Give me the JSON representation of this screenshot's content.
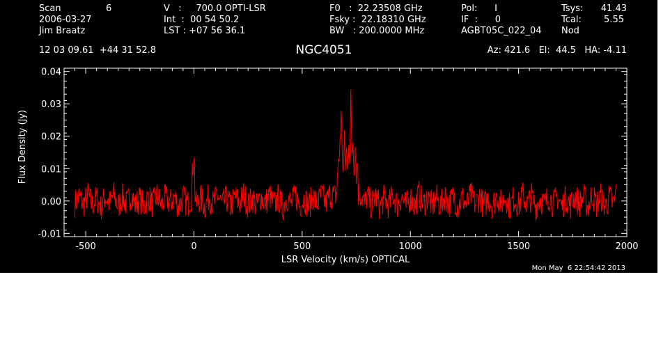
{
  "header": {
    "scan_label": "Scan",
    "scan_value": "6",
    "date": "2006-03-27",
    "observer": "Jim Braatz",
    "v_line": "V   :     700.0 OPTI-LSR",
    "int_line": "Int  :  00 54 50.2",
    "lst_line": "LST : +07 56 36.1",
    "f0_line": "F0   :  22.23508 GHz",
    "fsky_line": "Fsky :  22.18310 GHz",
    "bw_line": "BW   : 200.0000 MHz",
    "pol_line": "Pol:      I",
    "if_line": "IF  :      0",
    "project": "AGBT05C_022_04",
    "tsys_label": "Tsys:",
    "tsys_value": "41.43",
    "tcal_label": "Tcal:",
    "tcal_value": "5.55",
    "mode": "Nod",
    "coords": "12 03 09.61  +44 31 52.8",
    "source": "NGC4051",
    "az_el_ha": "Az: 421.6   El:  44.5   HA: -4.11"
  },
  "timestamp": "Mon May  6 22:54:42 2013",
  "chart_data": {
    "type": "line",
    "title": "NGC4051",
    "xlabel": "LSR Velocity (km/s) OPTICAL",
    "ylabel": "Flux Density (Jy)",
    "xlim": [
      -600,
      2000
    ],
    "ylim": [
      -0.011,
      0.041
    ],
    "xticks": [
      "-500",
      "0",
      "500",
      "1000",
      "1500",
      "2000"
    ],
    "xtick_values": [
      -500,
      0,
      500,
      1000,
      1500,
      2000
    ],
    "yticks": [
      "-0.01",
      "0.00",
      "0.01",
      "0.02",
      "0.03",
      "0.04"
    ],
    "ytick_values": [
      -0.01,
      0,
      0.01,
      0.02,
      0.03,
      0.04
    ],
    "series_color": "#ff0000",
    "axis_color": "#ffffff",
    "background": "#000000",
    "series": [
      {
        "x": [
          -550,
          -530,
          -510,
          -490,
          -470,
          -450,
          -430,
          -410,
          -390,
          -370,
          -350,
          -330,
          -310,
          -290,
          -270,
          -250,
          -230,
          -210,
          -190,
          -170,
          -150,
          -130,
          -110,
          -90,
          -70,
          -50,
          -30,
          -10,
          0,
          10,
          30,
          50,
          70,
          90,
          110,
          130,
          150,
          170,
          190,
          210,
          230,
          250,
          270,
          290,
          310,
          330,
          350,
          370,
          390,
          410,
          430,
          450,
          470,
          490,
          510,
          530,
          550,
          570,
          590,
          610,
          630,
          650,
          660,
          670,
          680,
          690,
          695,
          700,
          705,
          710,
          715,
          720,
          725,
          730,
          735,
          740,
          745,
          750,
          755,
          760,
          770,
          780,
          790,
          800,
          820,
          840,
          860,
          880,
          900,
          920,
          940,
          960,
          980,
          1000,
          1020,
          1040,
          1060,
          1080,
          1100,
          1120,
          1140,
          1160,
          1180,
          1200,
          1220,
          1240,
          1260,
          1280,
          1300,
          1320,
          1340,
          1360,
          1380,
          1400,
          1420,
          1440,
          1460,
          1480,
          1500,
          1520,
          1540,
          1560,
          1580,
          1600,
          1620,
          1640,
          1660,
          1680,
          1700,
          1720,
          1740,
          1760,
          1780,
          1800,
          1820,
          1840,
          1860,
          1880,
          1900,
          1920,
          1940,
          1950
        ],
        "y": [
          -0.002,
          0.004,
          -0.003,
          0.005,
          -0.004,
          0.003,
          -0.006,
          0.004,
          -0.002,
          0.005,
          -0.005,
          0.003,
          -0.003,
          0.006,
          -0.004,
          0.002,
          -0.005,
          0.004,
          -0.003,
          0.005,
          -0.004,
          0.003,
          -0.002,
          0.004,
          -0.005,
          0.003,
          -0.003,
          0.005,
          0.016,
          -0.004,
          0.003,
          -0.005,
          0.004,
          -0.003,
          0.005,
          -0.004,
          0.002,
          -0.005,
          0.004,
          -0.003,
          0.006,
          -0.004,
          0.003,
          -0.005,
          0.004,
          -0.002,
          0.005,
          -0.004,
          0.003,
          -0.006,
          0.004,
          -0.003,
          0.005,
          -0.004,
          0.003,
          -0.005,
          0.004,
          -0.003,
          0.005,
          -0.002,
          0.006,
          0.004,
          0.007,
          0.012,
          0.026,
          0.008,
          0.018,
          0.011,
          0.016,
          0.009,
          0.02,
          0.013,
          0.031,
          0.015,
          0.019,
          0.011,
          0.017,
          0.009,
          0.012,
          0.007,
          0.006,
          0.002,
          -0.003,
          0.005,
          -0.004,
          0.004,
          -0.005,
          0.003,
          -0.004,
          0.005,
          -0.003,
          0.004,
          -0.005,
          0.003,
          -0.004,
          0.006,
          -0.003,
          0.004,
          -0.005,
          0.003,
          -0.004,
          0.005,
          -0.003,
          0.004,
          -0.005,
          0.003,
          -0.004,
          0.005,
          -0.003,
          0.004,
          -0.005,
          0.003,
          -0.004,
          0.005,
          -0.003,
          0.004,
          -0.005,
          0.003,
          -0.004,
          0.005,
          -0.003,
          0.004,
          -0.005,
          0.003,
          -0.004,
          0.005,
          -0.003,
          0.004,
          -0.005,
          0.003,
          -0.004,
          0.005,
          -0.003,
          0.004,
          -0.005,
          0.006,
          -0.003,
          0.004,
          -0.005,
          0.003,
          -0.004,
          0.005
        ]
      }
    ]
  }
}
